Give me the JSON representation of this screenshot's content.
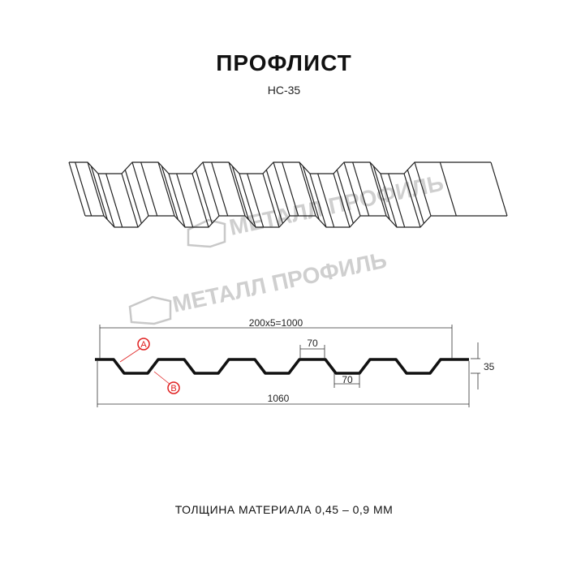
{
  "title": "ПРОФЛИСТ",
  "subtitle": "НС-35",
  "watermark": "МЕТАЛЛ ПРОФИЛЬ",
  "dimensions": {
    "pitch_total": "200x5=1000",
    "top_width": "70",
    "bottom_width": "70",
    "height": "35",
    "total_width": "1060"
  },
  "markers": {
    "a": "A",
    "b": "B"
  },
  "footer": "ТОЛЩИНА МАТЕРИАЛА 0,45 – 0,9 ММ",
  "colors": {
    "line": "#111111",
    "marker": "#e02020",
    "watermark": "#bdbdbd"
  }
}
